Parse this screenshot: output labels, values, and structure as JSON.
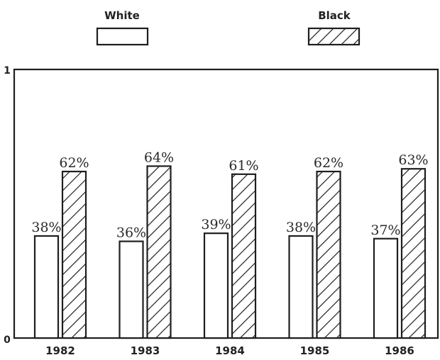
{
  "chart_data": {
    "type": "bar",
    "categories": [
      "1982",
      "1983",
      "1984",
      "1985",
      "1986"
    ],
    "series": [
      {
        "name": "White",
        "values": [
          38,
          36,
          39,
          38,
          37
        ],
        "labels": [
          "38%",
          "36%",
          "39%",
          "38%",
          "37%"
        ],
        "pattern": "solid"
      },
      {
        "name": "Black",
        "values": [
          62,
          64,
          61,
          62,
          63
        ],
        "labels": [
          "62%",
          "64%",
          "61%",
          "62%",
          "63%"
        ],
        "pattern": "hatched"
      }
    ],
    "ylim": [
      0,
      100
    ],
    "yticks": [
      "0",
      "1"
    ],
    "grid": false,
    "legend": "top",
    "colors": {
      "bar_fill": "#ffffff",
      "stroke": "#1e1e1e",
      "hatch": "#1e1e1e"
    }
  }
}
